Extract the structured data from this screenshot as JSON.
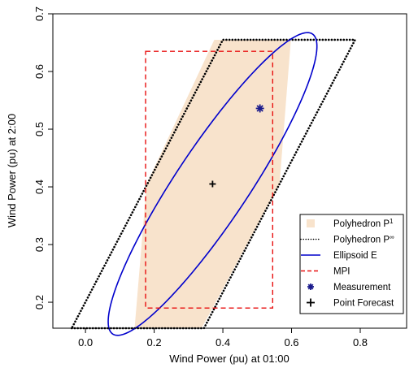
{
  "chart_data": {
    "type": "scatter",
    "xlabel": "Wind Power (pu) at 01:00",
    "ylabel": "Wind Power (pu) at 2:00",
    "xlim": [
      -0.095,
      0.935
    ],
    "ylim": [
      0.155,
      0.7
    ],
    "xticks": [
      0.0,
      0.2,
      0.4,
      0.6,
      0.8
    ],
    "xtick_labels": [
      "0.0",
      "0.2",
      "0.4",
      "0.6",
      "0.8"
    ],
    "yticks": [
      0.2,
      0.3,
      0.4,
      0.5,
      0.6,
      0.7
    ],
    "ytick_labels": [
      "0.2",
      "0.3",
      "0.4",
      "0.5",
      "0.6",
      "0.7"
    ],
    "grid": false,
    "legend_position": "bottom-right",
    "legend": [
      {
        "label": "Polyhedron P",
        "superscript": "1",
        "style": "fill",
        "color": "#f8e3cc"
      },
      {
        "label": "Polyhedron P",
        "superscript": "∞",
        "style": "dotted",
        "color": "#000000"
      },
      {
        "label": "Ellipsoid E",
        "style": "solid",
        "color": "#0000cc"
      },
      {
        "label": "MPI",
        "style": "dashed",
        "color": "#e81010"
      },
      {
        "label": "Measurement",
        "style": "asterisk",
        "color": "#1a1a8c"
      },
      {
        "label": "Point Forecast",
        "style": "plus",
        "color": "#000000"
      }
    ],
    "polyhedron_p1": [
      [
        0.143,
        0.155
      ],
      [
        0.338,
        0.155
      ],
      [
        0.565,
        0.405
      ],
      [
        0.598,
        0.655
      ],
      [
        0.375,
        0.655
      ],
      [
        0.178,
        0.405
      ]
    ],
    "polyhedron_pinf": [
      [
        -0.04,
        0.155
      ],
      [
        0.345,
        0.155
      ],
      [
        0.785,
        0.655
      ],
      [
        0.4,
        0.655
      ]
    ],
    "ellipsoid": {
      "center": [
        0.37,
        0.405
      ],
      "semi_major": 0.3925,
      "semi_minor": 0.0845,
      "angle_deg": 40.4
    },
    "mpi": {
      "x": [
        0.175,
        0.545
      ],
      "y": [
        0.19,
        0.635
      ]
    },
    "measurement": {
      "x": 0.508,
      "y": 0.536
    },
    "point_forecast": {
      "x": 0.37,
      "y": 0.405
    }
  }
}
